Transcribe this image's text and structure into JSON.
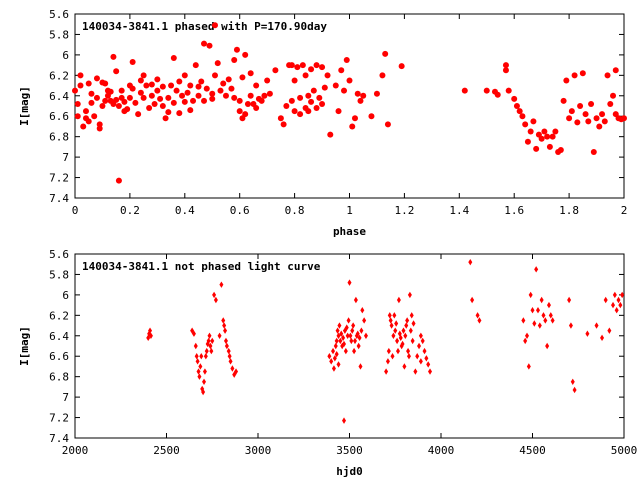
{
  "chart_data": [
    {
      "type": "scatter",
      "title": "140034-3841.1 phased with P=170.90day",
      "xlabel": "phase",
      "ylabel": "I[mag]",
      "xlim": [
        0,
        2
      ],
      "ylim": [
        5.6,
        7.4
      ],
      "y_inverted": true,
      "xticks": [
        0,
        0.2,
        0.4,
        0.6,
        0.8,
        1,
        1.2,
        1.4,
        1.6,
        1.8,
        2
      ],
      "yticks": [
        5.6,
        5.8,
        6,
        6.2,
        6.4,
        6.6,
        6.8,
        7,
        7.2,
        7.4
      ],
      "grid": false,
      "marker": "filled-circle",
      "color": "#ff0000",
      "points": [
        [
          0.0,
          6.35
        ],
        [
          0.01,
          6.6
        ],
        [
          0.01,
          6.48
        ],
        [
          0.02,
          6.2
        ],
        [
          0.02,
          6.3
        ],
        [
          0.03,
          6.7
        ],
        [
          0.04,
          6.55
        ],
        [
          0.04,
          6.62
        ],
        [
          0.05,
          6.28
        ],
        [
          0.05,
          6.65
        ],
        [
          0.06,
          6.38
        ],
        [
          0.06,
          6.47
        ],
        [
          0.07,
          6.6
        ],
        [
          0.08,
          6.23
        ],
        [
          0.08,
          6.42
        ],
        [
          0.09,
          6.68
        ],
        [
          0.09,
          6.72
        ],
        [
          0.1,
          6.27
        ],
        [
          0.1,
          6.5
        ],
        [
          0.11,
          6.45
        ],
        [
          0.11,
          6.28
        ],
        [
          0.12,
          6.4
        ],
        [
          0.12,
          6.35
        ],
        [
          0.13,
          6.45
        ],
        [
          0.13,
          6.36
        ],
        [
          0.14,
          6.48
        ],
        [
          0.14,
          6.02
        ],
        [
          0.15,
          6.16
        ],
        [
          0.15,
          6.44
        ],
        [
          0.16,
          7.23
        ],
        [
          0.16,
          6.5
        ],
        [
          0.17,
          6.35
        ],
        [
          0.17,
          6.42
        ],
        [
          0.18,
          6.55
        ],
        [
          0.18,
          6.46
        ],
        [
          0.19,
          6.53
        ],
        [
          0.2,
          6.42
        ],
        [
          0.2,
          6.3
        ],
        [
          0.21,
          6.33
        ],
        [
          0.21,
          6.07
        ],
        [
          0.22,
          6.47
        ],
        [
          0.23,
          6.58
        ],
        [
          0.24,
          6.25
        ],
        [
          0.24,
          6.37
        ],
        [
          0.25,
          6.2
        ],
        [
          0.25,
          6.42
        ],
        [
          0.26,
          6.3
        ],
        [
          0.27,
          6.52
        ],
        [
          0.28,
          6.4
        ],
        [
          0.28,
          6.29
        ],
        [
          0.29,
          6.48
        ],
        [
          0.3,
          6.35
        ],
        [
          0.3,
          6.24
        ],
        [
          0.31,
          6.43
        ],
        [
          0.32,
          6.31
        ],
        [
          0.32,
          6.5
        ],
        [
          0.33,
          6.62
        ],
        [
          0.34,
          6.56
        ],
        [
          0.34,
          6.42
        ],
        [
          0.35,
          6.3
        ],
        [
          0.36,
          6.03
        ],
        [
          0.36,
          6.47
        ],
        [
          0.37,
          6.35
        ],
        [
          0.38,
          6.26
        ],
        [
          0.38,
          6.57
        ],
        [
          0.39,
          6.4
        ],
        [
          0.4,
          6.2
        ],
        [
          0.4,
          6.46
        ],
        [
          0.41,
          6.37
        ],
        [
          0.42,
          6.3
        ],
        [
          0.42,
          6.54
        ],
        [
          0.43,
          6.45
        ],
        [
          0.44,
          6.1
        ],
        [
          0.45,
          6.4
        ],
        [
          0.45,
          6.31
        ],
        [
          0.46,
          6.26
        ],
        [
          0.47,
          5.89
        ],
        [
          0.47,
          6.45
        ],
        [
          0.48,
          6.33
        ],
        [
          0.49,
          5.91
        ],
        [
          0.5,
          6.38
        ],
        [
          0.5,
          6.43
        ],
        [
          0.51,
          6.2
        ],
        [
          0.51,
          5.71
        ],
        [
          0.52,
          6.08
        ],
        [
          0.53,
          6.35
        ],
        [
          0.54,
          6.28
        ],
        [
          0.55,
          6.4
        ],
        [
          0.56,
          6.24
        ],
        [
          0.57,
          6.33
        ],
        [
          0.58,
          6.42
        ],
        [
          0.58,
          6.05
        ],
        [
          0.59,
          5.95
        ],
        [
          0.6,
          6.45
        ],
        [
          0.6,
          6.55
        ],
        [
          0.61,
          6.62
        ],
        [
          0.61,
          6.22
        ],
        [
          0.62,
          6.58
        ],
        [
          0.62,
          6.0
        ],
        [
          0.63,
          6.48
        ],
        [
          0.64,
          6.4
        ],
        [
          0.64,
          6.18
        ],
        [
          0.65,
          6.48
        ],
        [
          0.66,
          6.52
        ],
        [
          0.66,
          6.3
        ],
        [
          0.67,
          6.43
        ],
        [
          0.68,
          6.45
        ],
        [
          0.69,
          6.4
        ],
        [
          0.7,
          6.25
        ],
        [
          0.71,
          6.38
        ],
        [
          0.73,
          6.15
        ],
        [
          0.75,
          6.62
        ],
        [
          0.76,
          6.68
        ],
        [
          0.77,
          6.5
        ],
        [
          0.78,
          6.1
        ],
        [
          0.79,
          6.45
        ],
        [
          0.79,
          6.1
        ],
        [
          0.8,
          6.55
        ],
        [
          0.8,
          6.25
        ],
        [
          0.81,
          6.12
        ],
        [
          0.82,
          6.42
        ],
        [
          0.82,
          6.58
        ],
        [
          0.83,
          6.1
        ],
        [
          0.84,
          6.52
        ],
        [
          0.84,
          6.2
        ],
        [
          0.85,
          6.55
        ],
        [
          0.85,
          6.4
        ],
        [
          0.86,
          6.46
        ],
        [
          0.86,
          6.14
        ],
        [
          0.87,
          6.35
        ],
        [
          0.88,
          6.52
        ],
        [
          0.88,
          6.1
        ],
        [
          0.89,
          6.42
        ],
        [
          0.9,
          6.48
        ],
        [
          0.9,
          6.12
        ],
        [
          0.91,
          6.32
        ],
        [
          0.92,
          6.2
        ],
        [
          0.93,
          6.78
        ],
        [
          0.95,
          6.3
        ],
        [
          0.96,
          6.55
        ],
        [
          0.97,
          6.15
        ],
        [
          0.98,
          6.35
        ],
        [
          0.99,
          6.05
        ],
        [
          1.0,
          6.25
        ],
        [
          1.01,
          6.7
        ],
        [
          1.02,
          6.62
        ],
        [
          1.03,
          6.38
        ],
        [
          1.04,
          6.45
        ],
        [
          1.05,
          6.4
        ],
        [
          1.08,
          6.6
        ],
        [
          1.1,
          6.38
        ],
        [
          1.12,
          6.2
        ],
        [
          1.13,
          5.99
        ],
        [
          1.14,
          6.68
        ],
        [
          1.19,
          6.11
        ],
        [
          1.42,
          6.35
        ],
        [
          1.5,
          6.35
        ],
        [
          1.53,
          6.36
        ],
        [
          1.54,
          6.39
        ],
        [
          1.57,
          6.1
        ],
        [
          1.57,
          6.15
        ],
        [
          1.58,
          6.35
        ],
        [
          1.6,
          6.43
        ],
        [
          1.61,
          6.5
        ],
        [
          1.62,
          6.55
        ],
        [
          1.63,
          6.6
        ],
        [
          1.64,
          6.68
        ],
        [
          1.65,
          6.85
        ],
        [
          1.66,
          6.75
        ],
        [
          1.67,
          6.65
        ],
        [
          1.68,
          6.92
        ],
        [
          1.69,
          6.78
        ],
        [
          1.7,
          6.82
        ],
        [
          1.71,
          6.75
        ],
        [
          1.72,
          6.8
        ],
        [
          1.73,
          6.9
        ],
        [
          1.75,
          6.75
        ],
        [
          1.76,
          6.95
        ],
        [
          1.77,
          6.93
        ],
        [
          1.78,
          6.45
        ],
        [
          1.79,
          6.25
        ],
        [
          1.8,
          6.62
        ],
        [
          1.81,
          6.55
        ],
        [
          1.82,
          6.2
        ],
        [
          1.83,
          6.66
        ],
        [
          1.84,
          6.5
        ],
        [
          1.85,
          6.18
        ],
        [
          1.86,
          6.58
        ],
        [
          1.87,
          6.65
        ],
        [
          1.88,
          6.48
        ],
        [
          1.89,
          6.95
        ],
        [
          1.9,
          6.62
        ],
        [
          1.91,
          6.7
        ],
        [
          1.92,
          6.58
        ],
        [
          1.93,
          6.65
        ],
        [
          1.94,
          6.2
        ],
        [
          1.95,
          6.48
        ],
        [
          1.96,
          6.4
        ],
        [
          1.97,
          6.58
        ],
        [
          1.97,
          6.15
        ],
        [
          1.98,
          6.62
        ],
        [
          1.99,
          6.63
        ],
        [
          2.0,
          6.62
        ],
        [
          1.74,
          6.8
        ]
      ]
    },
    {
      "type": "scatter",
      "title": "140034-3841.1 not phased light curve",
      "xlabel": "hjd0",
      "ylabel": "I[mag]",
      "xlim": [
        2000,
        5000
      ],
      "ylim": [
        5.6,
        7.4
      ],
      "y_inverted": true,
      "xticks": [
        2000,
        2500,
        3000,
        3500,
        4000,
        4500,
        5000
      ],
      "yticks": [
        5.6,
        5.8,
        6,
        6.2,
        6.4,
        6.6,
        6.8,
        7,
        7.2,
        7.4
      ],
      "grid": false,
      "marker": "diamond",
      "color": "#ff0000",
      "points": [
        [
          2400,
          6.42
        ],
        [
          2405,
          6.38
        ],
        [
          2410,
          6.35
        ],
        [
          2415,
          6.4
        ],
        [
          2640,
          6.35
        ],
        [
          2650,
          6.38
        ],
        [
          2660,
          6.5
        ],
        [
          2665,
          6.6
        ],
        [
          2670,
          6.65
        ],
        [
          2675,
          6.75
        ],
        [
          2680,
          6.8
        ],
        [
          2685,
          6.7
        ],
        [
          2690,
          6.6
        ],
        [
          2695,
          6.92
        ],
        [
          2700,
          6.95
        ],
        [
          2705,
          6.85
        ],
        [
          2710,
          6.75
        ],
        [
          2715,
          6.6
        ],
        [
          2720,
          6.55
        ],
        [
          2725,
          6.48
        ],
        [
          2730,
          6.45
        ],
        [
          2735,
          6.4
        ],
        [
          2740,
          6.5
        ],
        [
          2745,
          6.55
        ],
        [
          2750,
          6.45
        ],
        [
          2760,
          6.0
        ],
        [
          2770,
          6.05
        ],
        [
          2790,
          6.4
        ],
        [
          2800,
          5.9
        ],
        [
          2810,
          6.25
        ],
        [
          2815,
          6.3
        ],
        [
          2820,
          6.35
        ],
        [
          2825,
          6.45
        ],
        [
          2830,
          6.5
        ],
        [
          2840,
          6.55
        ],
        [
          2845,
          6.6
        ],
        [
          2850,
          6.65
        ],
        [
          2860,
          6.72
        ],
        [
          2870,
          6.78
        ],
        [
          2880,
          6.75
        ],
        [
          3390,
          6.6
        ],
        [
          3400,
          6.65
        ],
        [
          3410,
          6.55
        ],
        [
          3415,
          6.72
        ],
        [
          3420,
          6.62
        ],
        [
          3425,
          6.5
        ],
        [
          3430,
          6.45
        ],
        [
          3435,
          6.35
        ],
        [
          3440,
          6.4
        ],
        [
          3445,
          6.3
        ],
        [
          3450,
          6.45
        ],
        [
          3455,
          6.38
        ],
        [
          3460,
          6.5
        ],
        [
          3465,
          6.42
        ],
        [
          3470,
          6.48
        ],
        [
          3475,
          6.35
        ],
        [
          3480,
          6.55
        ],
        [
          3485,
          6.32
        ],
        [
          3490,
          6.4
        ],
        [
          3495,
          6.25
        ],
        [
          3500,
          5.88
        ],
        [
          3505,
          6.4
        ],
        [
          3510,
          6.45
        ],
        [
          3515,
          6.35
        ],
        [
          3520,
          6.3
        ],
        [
          3525,
          6.55
        ],
        [
          3530,
          6.45
        ],
        [
          3535,
          6.05
        ],
        [
          3540,
          6.4
        ],
        [
          3545,
          6.38
        ],
        [
          3550,
          6.5
        ],
        [
          3555,
          6.42
        ],
        [
          3560,
          6.7
        ],
        [
          3565,
          6.35
        ],
        [
          3570,
          6.15
        ],
        [
          3580,
          6.25
        ],
        [
          3590,
          6.4
        ],
        [
          3470,
          7.23
        ],
        [
          3430,
          6.58
        ],
        [
          3440,
          6.68
        ],
        [
          3700,
          6.75
        ],
        [
          3710,
          6.65
        ],
        [
          3715,
          6.55
        ],
        [
          3720,
          6.2
        ],
        [
          3725,
          6.25
        ],
        [
          3730,
          6.3
        ],
        [
          3735,
          6.6
        ],
        [
          3740,
          6.4
        ],
        [
          3745,
          6.2
        ],
        [
          3750,
          6.35
        ],
        [
          3755,
          6.28
        ],
        [
          3760,
          6.45
        ],
        [
          3765,
          6.55
        ],
        [
          3770,
          6.05
        ],
        [
          3775,
          6.38
        ],
        [
          3780,
          6.42
        ],
        [
          3785,
          6.5
        ],
        [
          3790,
          6.48
        ],
        [
          3795,
          6.35
        ],
        [
          3800,
          6.7
        ],
        [
          3805,
          6.4
        ],
        [
          3810,
          6.3
        ],
        [
          3815,
          6.25
        ],
        [
          3820,
          6.55
        ],
        [
          3825,
          6.6
        ],
        [
          3830,
          6.0
        ],
        [
          3835,
          6.35
        ],
        [
          3840,
          6.2
        ],
        [
          3845,
          6.45
        ],
        [
          3850,
          6.28
        ],
        [
          3860,
          6.75
        ],
        [
          3870,
          6.6
        ],
        [
          3880,
          6.5
        ],
        [
          3890,
          6.4
        ],
        [
          3900,
          6.45
        ],
        [
          3910,
          6.55
        ],
        [
          3920,
          6.62
        ],
        [
          3930,
          6.68
        ],
        [
          3940,
          6.75
        ],
        [
          3890,
          6.65
        ],
        [
          4160,
          5.68
        ],
        [
          4170,
          6.05
        ],
        [
          4200,
          6.2
        ],
        [
          4210,
          6.25
        ],
        [
          4450,
          6.25
        ],
        [
          4460,
          6.45
        ],
        [
          4470,
          6.4
        ],
        [
          4480,
          6.7
        ],
        [
          4490,
          6.0
        ],
        [
          4500,
          6.15
        ],
        [
          4510,
          6.28
        ],
        [
          4520,
          5.75
        ],
        [
          4530,
          6.15
        ],
        [
          4540,
          6.3
        ],
        [
          4550,
          6.05
        ],
        [
          4560,
          6.2
        ],
        [
          4570,
          6.25
        ],
        [
          4580,
          6.5
        ],
        [
          4590,
          6.1
        ],
        [
          4600,
          6.2
        ],
        [
          4610,
          6.25
        ],
        [
          4700,
          6.05
        ],
        [
          4710,
          6.3
        ],
        [
          4720,
          6.85
        ],
        [
          4730,
          6.93
        ],
        [
          4800,
          6.38
        ],
        [
          4850,
          6.3
        ],
        [
          4880,
          6.42
        ],
        [
          4900,
          6.05
        ],
        [
          4920,
          6.35
        ],
        [
          4940,
          6.1
        ],
        [
          4950,
          6.0
        ],
        [
          4960,
          6.15
        ],
        [
          4970,
          6.05
        ],
        [
          4980,
          6.1
        ],
        [
          4990,
          6.0
        ]
      ]
    }
  ]
}
